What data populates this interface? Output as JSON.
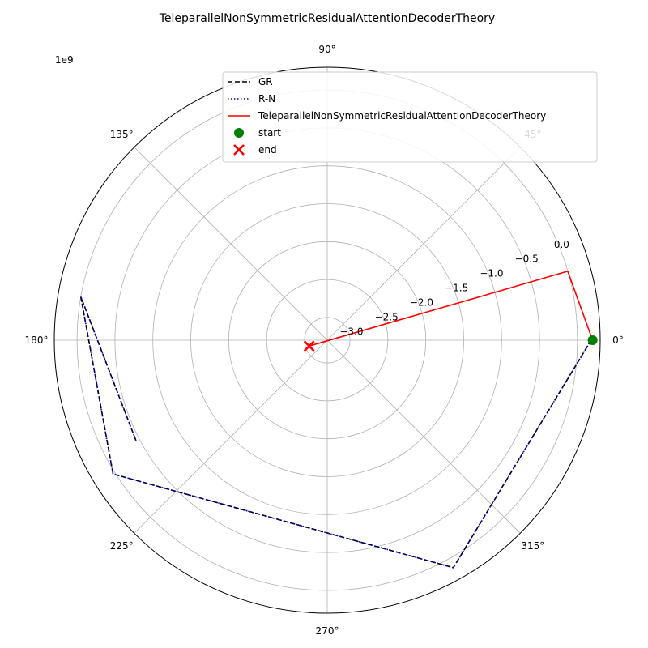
{
  "chart_data": {
    "type": "polar-line",
    "title": "TeleparallelNonSymmetricResidualAttentionDecoderTheory",
    "r_offset_label": "1e9",
    "rlim": [
      -3.3,
      0.3
    ],
    "r_ticks": [
      -3.0,
      -2.5,
      -2.0,
      -1.5,
      -1.0,
      -0.5,
      0.0
    ],
    "r_tick_labels": [
      "−3.0",
      "−2.5",
      "−2.0",
      "−1.5",
      "−1.0",
      "−0.5",
      "0.0"
    ],
    "theta_ticks": [
      0,
      45,
      90,
      135,
      180,
      225,
      270,
      315
    ],
    "theta_tick_labels": [
      "0°",
      "45°",
      "90°",
      "135°",
      "180°",
      "225°",
      "270°",
      "315°"
    ],
    "grid": true,
    "legend_position": "upper-right",
    "series": [
      {
        "name": "GR",
        "color": "#000000",
        "style": "dashed",
        "points": [
          [
            0,
            0.18
          ],
          [
            299,
            0.13
          ],
          [
            212,
            0.03
          ],
          [
            170,
            0.0
          ],
          [
            208,
            -0.45
          ]
        ]
      },
      {
        "name": "R-N",
        "color": "#0000cc",
        "style": "dotted",
        "points": [
          [
            0,
            0.18
          ],
          [
            299,
            0.13
          ],
          [
            212,
            0.03
          ],
          [
            170,
            0.0
          ],
          [
            208,
            -0.45
          ]
        ]
      },
      {
        "name": "TeleparallelNonSymmetricResidualAttentionDecoderTheory",
        "color": "#ff0000",
        "style": "solid",
        "points": [
          [
            0,
            0.2
          ],
          [
            16,
            0.0
          ],
          [
            198,
            -3.05
          ]
        ]
      }
    ],
    "markers": [
      {
        "name": "start",
        "color": "#008000",
        "shape": "circle",
        "point": [
          0,
          0.2
        ]
      },
      {
        "name": "end",
        "color": "#ff0000",
        "shape": "x",
        "point": [
          198,
          -3.05
        ]
      }
    ]
  }
}
